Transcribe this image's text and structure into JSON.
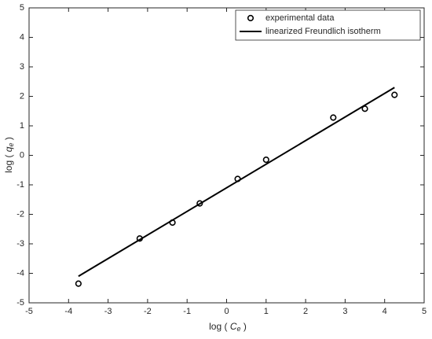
{
  "chart_data": {
    "type": "scatter",
    "x_label": {
      "prefix": "log ( ",
      "symbol": "C",
      "subscript": "e",
      "suffix": " )"
    },
    "y_label": {
      "prefix": "log ( ",
      "symbol": "q",
      "subscript": "e",
      "suffix": " )"
    },
    "series": [
      {
        "name": "experimental data",
        "type": "scatter",
        "color": "#000000",
        "x": [
          -3.75,
          -2.2,
          -1.37,
          -0.68,
          0.28,
          1.0,
          2.7,
          3.5,
          4.25
        ],
        "values": [
          -4.35,
          -2.82,
          -2.28,
          -1.63,
          -0.8,
          -0.15,
          1.28,
          1.58,
          2.05
        ]
      },
      {
        "name": "linearized Freundlich isotherm",
        "type": "line",
        "color": "#000000",
        "x": [
          -3.75,
          4.25
        ],
        "values": [
          -4.1,
          2.3
        ]
      }
    ],
    "xlim": [
      -5,
      5
    ],
    "xticks": [
      -5,
      -4,
      -3,
      -2,
      -1,
      0,
      1,
      2,
      3,
      4,
      5
    ],
    "ylim": [
      -5,
      5
    ],
    "yticks": [
      -5,
      -4,
      -3,
      -2,
      -1,
      0,
      1,
      2,
      3,
      4,
      5
    ],
    "legend": "upper right",
    "grid": false
  }
}
